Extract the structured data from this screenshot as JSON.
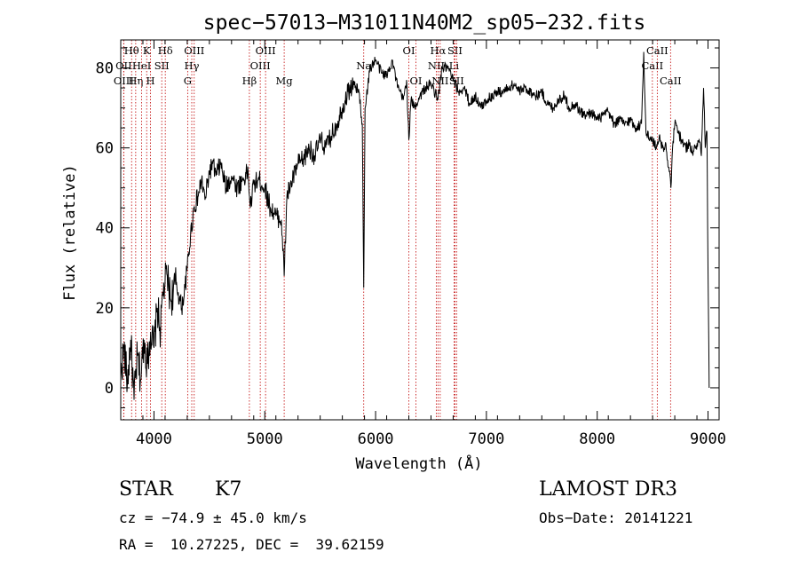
{
  "chart_data": {
    "type": "line",
    "title": "spec−57013−M31011N40M2_sp05−232.fits",
    "xlabel": "Wavelength (Å)",
    "ylabel": "Flux (relative)",
    "xlim": [
      3700,
      9100
    ],
    "ylim": [
      -8,
      87
    ],
    "xticks": [
      4000,
      5000,
      6000,
      7000,
      8000,
      9000
    ],
    "yticks": [
      0,
      20,
      40,
      60,
      80
    ],
    "grid": false,
    "series": [
      {
        "name": "flux",
        "points": [
          [
            3700,
            3
          ],
          [
            3730,
            10
          ],
          [
            3760,
            1
          ],
          [
            3790,
            12
          ],
          [
            3820,
            -3
          ],
          [
            3850,
            8
          ],
          [
            3880,
            2
          ],
          [
            3910,
            12
          ],
          [
            3940,
            6
          ],
          [
            3970,
            14
          ],
          [
            4000,
            10
          ],
          [
            4030,
            20
          ],
          [
            4060,
            14
          ],
          [
            4080,
            24
          ],
          [
            4100,
            26
          ],
          [
            4120,
            28
          ],
          [
            4150,
            22
          ],
          [
            4200,
            26
          ],
          [
            4250,
            20
          ],
          [
            4280,
            25
          ],
          [
            4300,
            30
          ],
          [
            4330,
            38
          ],
          [
            4360,
            45
          ],
          [
            4400,
            48
          ],
          [
            4430,
            52
          ],
          [
            4460,
            47
          ],
          [
            4500,
            54
          ],
          [
            4530,
            56
          ],
          [
            4560,
            53
          ],
          [
            4600,
            56
          ],
          [
            4650,
            50
          ],
          [
            4700,
            53
          ],
          [
            4750,
            50
          ],
          [
            4800,
            52
          ],
          [
            4850,
            54
          ],
          [
            4870,
            45
          ],
          [
            4900,
            51
          ],
          [
            4950,
            52
          ],
          [
            5000,
            50
          ],
          [
            5050,
            45
          ],
          [
            5100,
            43
          ],
          [
            5150,
            42
          ],
          [
            5175,
            28
          ],
          [
            5200,
            48
          ],
          [
            5250,
            52
          ],
          [
            5300,
            56
          ],
          [
            5350,
            57
          ],
          [
            5400,
            60
          ],
          [
            5450,
            58
          ],
          [
            5500,
            62
          ],
          [
            5550,
            60
          ],
          [
            5600,
            63
          ],
          [
            5650,
            66
          ],
          [
            5700,
            70
          ],
          [
            5750,
            74
          ],
          [
            5800,
            76
          ],
          [
            5850,
            74
          ],
          [
            5880,
            66
          ],
          [
            5893,
            25
          ],
          [
            5905,
            70
          ],
          [
            5950,
            80
          ],
          [
            6000,
            82
          ],
          [
            6050,
            79
          ],
          [
            6100,
            78
          ],
          [
            6150,
            82
          ],
          [
            6200,
            75
          ],
          [
            6250,
            72
          ],
          [
            6280,
            77
          ],
          [
            6300,
            62
          ],
          [
            6320,
            72
          ],
          [
            6350,
            70
          ],
          [
            6400,
            73
          ],
          [
            6450,
            75
          ],
          [
            6500,
            76
          ],
          [
            6550,
            73
          ],
          [
            6563,
            72
          ],
          [
            6600,
            80
          ],
          [
            6650,
            80
          ],
          [
            6700,
            77
          ],
          [
            6750,
            74
          ],
          [
            6800,
            75
          ],
          [
            6850,
            71
          ],
          [
            6900,
            73
          ],
          [
            6950,
            70
          ],
          [
            7000,
            72
          ],
          [
            7050,
            73
          ],
          [
            7100,
            74
          ],
          [
            7150,
            74
          ],
          [
            7200,
            75
          ],
          [
            7250,
            76
          ],
          [
            7300,
            74
          ],
          [
            7350,
            75
          ],
          [
            7400,
            74
          ],
          [
            7450,
            73
          ],
          [
            7500,
            74
          ],
          [
            7550,
            71
          ],
          [
            7600,
            70
          ],
          [
            7650,
            72
          ],
          [
            7700,
            73
          ],
          [
            7750,
            70
          ],
          [
            7800,
            71
          ],
          [
            7850,
            69
          ],
          [
            7900,
            68
          ],
          [
            7950,
            69
          ],
          [
            8000,
            67
          ],
          [
            8050,
            68
          ],
          [
            8100,
            69
          ],
          [
            8150,
            66
          ],
          [
            8200,
            67
          ],
          [
            8250,
            66
          ],
          [
            8300,
            67
          ],
          [
            8350,
            65
          ],
          [
            8400,
            66
          ],
          [
            8420,
            84
          ],
          [
            8440,
            64
          ],
          [
            8480,
            62
          ],
          [
            8500,
            62
          ],
          [
            8530,
            60
          ],
          [
            8560,
            63
          ],
          [
            8600,
            59
          ],
          [
            8620,
            61
          ],
          [
            8650,
            54
          ],
          [
            8665,
            50
          ],
          [
            8680,
            60
          ],
          [
            8700,
            66
          ],
          [
            8730,
            64
          ],
          [
            8760,
            62
          ],
          [
            8800,
            60
          ],
          [
            8830,
            61
          ],
          [
            8860,
            59
          ],
          [
            8890,
            60
          ],
          [
            8920,
            62
          ],
          [
            8940,
            58
          ],
          [
            8960,
            75
          ],
          [
            8975,
            60
          ],
          [
            8990,
            64
          ],
          [
            9000,
            30
          ],
          [
            9010,
            0
          ]
        ]
      }
    ],
    "lines": [
      {
        "label": "Hθ",
        "wl": 3798,
        "row": 1
      },
      {
        "label": "OII",
        "wl": 3727,
        "row": 2
      },
      {
        "label": "OIII",
        "wl": 3727,
        "row": 3
      },
      {
        "label": "Hη",
        "wl": 3835,
        "row": 3
      },
      {
        "label": "HeI",
        "wl": 3889,
        "row": 2
      },
      {
        "label": "K",
        "wl": 3934,
        "row": 1
      },
      {
        "label": "H",
        "wl": 3969,
        "row": 3
      },
      {
        "label": "SII",
        "wl": 4070,
        "row": 2
      },
      {
        "label": "Hδ",
        "wl": 4102,
        "row": 1
      },
      {
        "label": "G",
        "wl": 4304,
        "row": 3
      },
      {
        "label": "OIII",
        "wl": 4363,
        "row": 1
      },
      {
        "label": "Hγ",
        "wl": 4341,
        "row": 2
      },
      {
        "label": "Hβ",
        "wl": 4861,
        "row": 3
      },
      {
        "label": "OIII",
        "wl": 4959,
        "row": 2
      },
      {
        "label": "OIII",
        "wl": 5007,
        "row": 1
      },
      {
        "label": "Mg",
        "wl": 5175,
        "row": 3
      },
      {
        "label": "Na",
        "wl": 5893,
        "row": 2
      },
      {
        "label": "OI",
        "wl": 6300,
        "row": 1
      },
      {
        "label": "OI",
        "wl": 6364,
        "row": 3
      },
      {
        "label": "NII",
        "wl": 6548,
        "row": 2
      },
      {
        "label": "Hα",
        "wl": 6563,
        "row": 1
      },
      {
        "label": "NII",
        "wl": 6583,
        "row": 3
      },
      {
        "label": "Li",
        "wl": 6708,
        "row": 2
      },
      {
        "label": "SII",
        "wl": 6716,
        "row": 1
      },
      {
        "label": "SII",
        "wl": 6731,
        "row": 3
      },
      {
        "label": "CaII",
        "wl": 8498,
        "row": 2
      },
      {
        "label": "CaII",
        "wl": 8542,
        "row": 1
      },
      {
        "label": "CaII",
        "wl": 8662,
        "row": 3
      }
    ]
  },
  "info": {
    "class": "STAR",
    "subclass": "K7",
    "survey": "LAMOST DR3",
    "redshift": "cz = −74.9 ± 45.0 km/s",
    "obs_date": "Obs−Date: 20141221",
    "coords": "RA =  10.27225, DEC =  39.62159"
  }
}
